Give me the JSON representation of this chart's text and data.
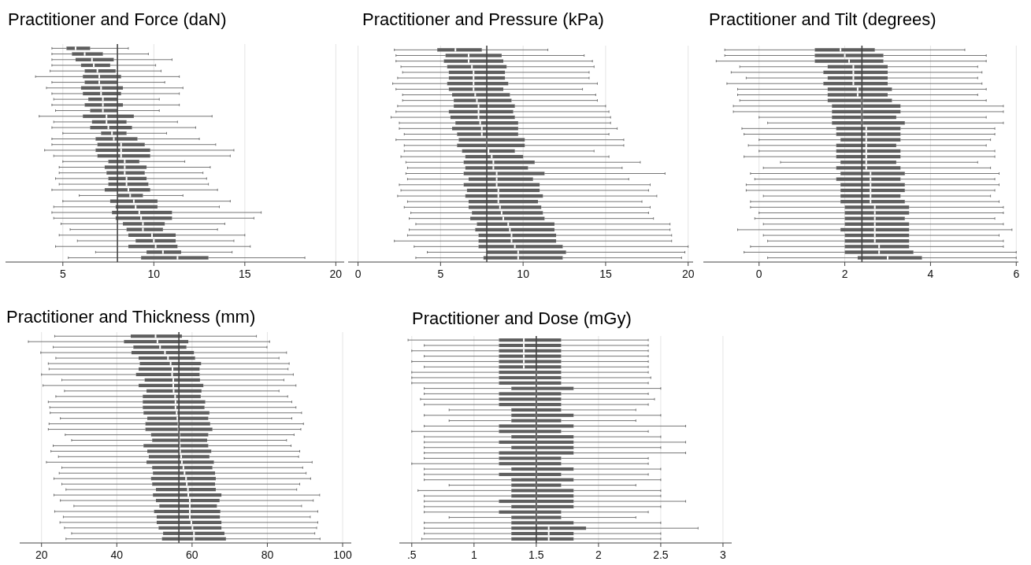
{
  "chart_data": [
    {
      "type": "box",
      "title": "Practitioner and Force (daN)",
      "orientation": "horizontal",
      "color": "#5e5e5e",
      "grid": "x",
      "tick_labels": "x",
      "xlim": [
        1.85,
        20.46
      ],
      "xticks": [
        5,
        10,
        15,
        20
      ],
      "ref_lines": [
        {
          "axis": "x",
          "value": 8,
          "color": "#444444"
        }
      ],
      "categories": [
        null,
        null,
        null,
        null,
        null,
        null,
        null,
        null,
        null,
        null,
        null,
        null,
        null,
        null,
        null,
        null,
        null,
        null,
        null,
        null,
        null,
        null,
        null,
        null,
        null,
        null,
        null,
        null,
        null,
        null,
        null,
        null,
        null,
        null,
        null,
        null,
        null,
        null
      ],
      "boxes": [
        {
          "low": 4.4,
          "q1": 5.2,
          "median": 5.7,
          "q3": 6.5,
          "high": 8.6
        },
        {
          "low": 4.4,
          "q1": 5.5,
          "median": 6.2,
          "q3": 7.2,
          "high": 9.7
        },
        {
          "low": 4.4,
          "q1": 5.7,
          "median": 6.6,
          "q3": 7.8,
          "high": 11.0
        },
        {
          "low": 4.4,
          "q1": 6.0,
          "median": 6.7,
          "q3": 7.6,
          "high": 10.1
        },
        {
          "low": 4.3,
          "q1": 6.2,
          "median": 6.9,
          "q3": 7.9,
          "high": 10.4
        },
        {
          "low": 3.5,
          "q1": 6.1,
          "median": 7.0,
          "q3": 8.2,
          "high": 11.4
        },
        {
          "low": 4.4,
          "q1": 6.2,
          "median": 7.0,
          "q3": 8.0,
          "high": 10.6
        },
        {
          "low": 4.1,
          "q1": 6.0,
          "median": 7.1,
          "q3": 8.3,
          "high": 11.6
        },
        {
          "low": 4.4,
          "q1": 6.1,
          "median": 7.1,
          "q3": 8.2,
          "high": 11.4
        },
        {
          "low": 4.5,
          "q1": 6.4,
          "median": 7.2,
          "q3": 8.0,
          "high": 10.3
        },
        {
          "low": 4.4,
          "q1": 6.2,
          "median": 7.2,
          "q3": 8.3,
          "high": 11.4
        },
        {
          "low": 4.6,
          "q1": 6.5,
          "median": 7.2,
          "q3": 8.0,
          "high": 10.3
        },
        {
          "low": 3.7,
          "q1": 6.1,
          "median": 7.4,
          "q3": 8.9,
          "high": 13.2
        },
        {
          "low": 4.5,
          "q1": 6.6,
          "median": 7.4,
          "q3": 8.5,
          "high": 11.3
        },
        {
          "low": 4.4,
          "q1": 6.5,
          "median": 7.5,
          "q3": 8.8,
          "high": 12.3
        },
        {
          "low": 5.0,
          "q1": 7.1,
          "median": 7.7,
          "q3": 8.5,
          "high": 10.7
        },
        {
          "low": 4.4,
          "q1": 6.8,
          "median": 7.8,
          "q3": 9.1,
          "high": 12.5
        },
        {
          "low": 4.4,
          "q1": 6.9,
          "median": 8.2,
          "q3": 9.5,
          "high": 13.4
        },
        {
          "low": 4.0,
          "q1": 6.8,
          "median": 8.2,
          "q3": 9.8,
          "high": 14.4
        },
        {
          "low": 4.5,
          "q1": 6.9,
          "median": 8.2,
          "q3": 9.8,
          "high": 14.2
        },
        {
          "low": 5.0,
          "q1": 7.5,
          "median": 8.4,
          "q3": 9.2,
          "high": 11.7
        },
        {
          "low": 4.8,
          "q1": 7.3,
          "median": 8.4,
          "q3": 9.6,
          "high": 13.1
        },
        {
          "low": 4.8,
          "q1": 7.4,
          "median": 8.4,
          "q3": 9.5,
          "high": 12.7
        },
        {
          "low": 4.6,
          "q1": 7.5,
          "median": 8.5,
          "q3": 9.6,
          "high": 12.9
        },
        {
          "low": 4.8,
          "q1": 7.5,
          "median": 8.5,
          "q3": 9.7,
          "high": 13.0
        },
        {
          "low": 4.4,
          "q1": 7.3,
          "median": 8.6,
          "q3": 9.8,
          "high": 13.5
        },
        {
          "low": 5.9,
          "q1": 8.0,
          "median": 8.7,
          "q3": 9.4,
          "high": 11.6
        },
        {
          "low": 5.0,
          "q1": 7.6,
          "median": 8.9,
          "q3": 10.2,
          "high": 14.2
        },
        {
          "low": 4.5,
          "q1": 7.9,
          "median": 9.0,
          "q3": 10.2,
          "high": 13.6
        },
        {
          "low": 4.4,
          "q1": 7.7,
          "median": 9.2,
          "q3": 11.0,
          "high": 15.9
        },
        {
          "low": 4.5,
          "q1": 7.9,
          "median": 9.3,
          "q3": 11.0,
          "high": 15.5
        },
        {
          "low": 4.9,
          "q1": 8.3,
          "median": 9.4,
          "q3": 10.6,
          "high": 13.9
        },
        {
          "low": 5.4,
          "q1": 8.5,
          "median": 9.4,
          "q3": 10.5,
          "high": 13.5
        },
        {
          "low": 4.8,
          "q1": 8.6,
          "median": 9.9,
          "q3": 11.2,
          "high": 15.0
        },
        {
          "low": 5.8,
          "q1": 9.0,
          "median": 10.0,
          "q3": 11.2,
          "high": 14.4
        },
        {
          "low": 4.6,
          "q1": 8.6,
          "median": 10.1,
          "q3": 11.3,
          "high": 15.3
        },
        {
          "low": 6.8,
          "q1": 9.6,
          "median": 10.5,
          "q3": 11.5,
          "high": 14.3
        },
        {
          "low": 5.3,
          "q1": 9.3,
          "median": 11.3,
          "q3": 13.0,
          "high": 18.3
        }
      ]
    },
    {
      "type": "box",
      "title": "Practitioner and Pressure (kPa)",
      "orientation": "horizontal",
      "color": "#5e5e5e",
      "grid": "x",
      "tick_labels": "x",
      "xlim": [
        -0.6,
        20.3
      ],
      "xticks": [
        0,
        5,
        10,
        15,
        20
      ],
      "ref_lines": [
        {
          "axis": "x",
          "value": 7.8,
          "color": "#444444"
        }
      ],
      "categories": [
        null,
        null,
        null,
        null,
        null,
        null,
        null,
        null,
        null,
        null,
        null,
        null,
        null,
        null,
        null,
        null,
        null,
        null,
        null,
        null,
        null,
        null,
        null,
        null,
        null,
        null,
        null,
        null,
        null,
        null,
        null,
        null,
        null,
        null,
        null,
        null,
        null,
        null
      ],
      "boxes": [
        {
          "low": 2.2,
          "q1": 4.8,
          "median": 5.9,
          "q3": 7.5,
          "high": 11.5
        },
        {
          "low": 2.3,
          "q1": 5.3,
          "median": 6.7,
          "q3": 8.7,
          "high": 13.7
        },
        {
          "low": 2.3,
          "q1": 5.2,
          "median": 6.7,
          "q3": 8.8,
          "high": 14.2
        },
        {
          "low": 2.6,
          "q1": 5.4,
          "median": 6.9,
          "q3": 9.0,
          "high": 14.3
        },
        {
          "low": 2.7,
          "q1": 5.5,
          "median": 7.0,
          "q3": 8.9,
          "high": 14.0
        },
        {
          "low": 2.4,
          "q1": 5.5,
          "median": 7.0,
          "q3": 8.9,
          "high": 14.0
        },
        {
          "low": 2.1,
          "q1": 5.4,
          "median": 7.0,
          "q3": 9.1,
          "high": 14.5
        },
        {
          "low": 2.3,
          "q1": 5.5,
          "median": 7.0,
          "q3": 8.8,
          "high": 13.6
        },
        {
          "low": 2.7,
          "q1": 5.7,
          "median": 7.1,
          "q3": 9.2,
          "high": 14.4
        },
        {
          "low": 2.7,
          "q1": 5.8,
          "median": 7.2,
          "q3": 9.3,
          "high": 14.5
        },
        {
          "low": 2.4,
          "q1": 5.8,
          "median": 7.3,
          "q3": 9.5,
          "high": 15.0
        },
        {
          "low": 2.3,
          "q1": 5.5,
          "median": 7.3,
          "q3": 9.4,
          "high": 15.2
        },
        {
          "low": 2.0,
          "q1": 5.6,
          "median": 7.3,
          "q3": 9.5,
          "high": 15.3
        },
        {
          "low": 2.5,
          "q1": 5.9,
          "median": 7.4,
          "q3": 9.7,
          "high": 15.3
        },
        {
          "low": 2.5,
          "q1": 5.7,
          "median": 7.5,
          "q3": 9.7,
          "high": 15.7
        },
        {
          "low": 2.8,
          "q1": 6.0,
          "median": 7.5,
          "q3": 9.7,
          "high": 15.2
        },
        {
          "low": 2.3,
          "q1": 6.1,
          "median": 7.8,
          "q3": 10.1,
          "high": 16.1
        },
        {
          "low": 2.8,
          "q1": 6.0,
          "median": 7.8,
          "q3": 10.1,
          "high": 16.1
        },
        {
          "low": 2.8,
          "q1": 6.3,
          "median": 7.9,
          "q3": 9.5,
          "high": 14.3
        },
        {
          "low": 2.6,
          "q1": 6.5,
          "median": 8.1,
          "q3": 10.0,
          "high": 15.2
        },
        {
          "low": 2.9,
          "q1": 6.4,
          "median": 8.2,
          "q3": 10.7,
          "high": 17.1
        },
        {
          "low": 3.0,
          "q1": 6.5,
          "median": 8.2,
          "q3": 10.3,
          "high": 16.0
        },
        {
          "low": 2.9,
          "q1": 6.4,
          "median": 8.4,
          "q3": 11.3,
          "high": 18.6
        },
        {
          "low": 3.0,
          "q1": 6.7,
          "median": 8.4,
          "q3": 10.6,
          "high": 16.4
        },
        {
          "low": 2.5,
          "q1": 6.4,
          "median": 8.4,
          "q3": 11.0,
          "high": 17.7
        },
        {
          "low": 2.6,
          "q1": 6.6,
          "median": 8.5,
          "q3": 11.0,
          "high": 17.6
        },
        {
          "low": 2.4,
          "q1": 6.5,
          "median": 8.5,
          "q3": 11.2,
          "high": 18.1
        },
        {
          "low": 3.0,
          "q1": 6.7,
          "median": 8.5,
          "q3": 10.9,
          "high": 17.2
        },
        {
          "low": 2.8,
          "q1": 6.7,
          "median": 8.6,
          "q3": 11.1,
          "high": 17.7
        },
        {
          "low": 3.2,
          "q1": 6.9,
          "median": 8.7,
          "q3": 11.2,
          "high": 17.6
        },
        {
          "low": 3.1,
          "q1": 6.8,
          "median": 8.8,
          "q3": 11.3,
          "high": 17.9
        },
        {
          "low": 3.5,
          "q1": 7.2,
          "median": 9.1,
          "q3": 11.9,
          "high": 18.9
        },
        {
          "low": 3.1,
          "q1": 7.1,
          "median": 9.2,
          "q3": 11.9,
          "high": 18.9
        },
        {
          "low": 3.0,
          "q1": 7.3,
          "median": 9.3,
          "q3": 12.0,
          "high": 19.0
        },
        {
          "low": 2.2,
          "q1": 7.3,
          "median": 9.3,
          "q3": 12.0,
          "high": 19.0
        },
        {
          "low": 3.4,
          "q1": 7.3,
          "median": 9.5,
          "q3": 12.4,
          "high": 20.0
        },
        {
          "low": 4.2,
          "q1": 7.8,
          "median": 9.7,
          "q3": 12.6,
          "high": 19.8
        },
        {
          "low": 3.5,
          "q1": 7.6,
          "median": 9.7,
          "q3": 12.4,
          "high": 19.6
        }
      ]
    },
    {
      "type": "box",
      "title": "Practitioner and Tilt (degrees)",
      "orientation": "horizontal",
      "color": "#5e5e5e",
      "grid": "x",
      "tick_labels": "x",
      "xlim": [
        -1.3,
        6.05
      ],
      "xticks": [
        0,
        2,
        4,
        6
      ],
      "ref_lines": [
        {
          "axis": "x",
          "value": 2.4,
          "color": "#444444"
        }
      ],
      "categories": [
        null,
        null,
        null,
        null,
        null,
        null,
        null,
        null,
        null,
        null,
        null,
        null,
        null,
        null,
        null,
        null,
        null,
        null,
        null,
        null,
        null,
        null,
        null,
        null,
        null,
        null,
        null,
        null,
        null,
        null,
        null,
        null,
        null,
        null,
        null,
        null,
        null,
        null
      ],
      "boxes": [
        {
          "low": -0.8,
          "q1": 1.3,
          "median": 1.9,
          "q3": 2.7,
          "high": 4.8
        },
        {
          "low": -0.8,
          "q1": 1.3,
          "median": 2.0,
          "q3": 2.9,
          "high": 5.3
        },
        {
          "low": -1.0,
          "q1": 1.3,
          "median": 2.1,
          "q3": 2.9,
          "high": 5.3
        },
        {
          "low": -0.45,
          "q1": 1.6,
          "median": 2.2,
          "q3": 3.0,
          "high": 5.1
        },
        {
          "low": -0.65,
          "q1": 1.5,
          "median": 2.2,
          "q3": 3.0,
          "high": 5.2
        },
        {
          "low": -0.3,
          "q1": 1.6,
          "median": 2.2,
          "q3": 3.0,
          "high": 5.1
        },
        {
          "low": -0.75,
          "q1": 1.5,
          "median": 2.2,
          "q3": 3.0,
          "high": 5.2
        },
        {
          "low": -0.5,
          "q1": 1.6,
          "median": 2.3,
          "q3": 3.1,
          "high": 5.3
        },
        {
          "low": -0.5,
          "q1": 1.6,
          "median": 2.3,
          "q3": 3.0,
          "high": 5.1
        },
        {
          "low": -0.45,
          "q1": 1.6,
          "median": 2.4,
          "q3": 3.1,
          "high": 5.3
        },
        {
          "low": -0.6,
          "q1": 1.7,
          "median": 2.4,
          "q3": 3.3,
          "high": 5.7
        },
        {
          "low": -0.6,
          "q1": 1.7,
          "median": 2.4,
          "q3": 3.3,
          "high": 5.7
        },
        {
          "low": 0.0,
          "q1": 1.7,
          "median": 2.4,
          "q3": 3.2,
          "high": 5.3
        },
        {
          "low": 0.2,
          "q1": 1.7,
          "median": 2.4,
          "q3": 3.4,
          "high": 5.7
        },
        {
          "low": -0.4,
          "q1": 1.8,
          "median": 2.5,
          "q3": 3.3,
          "high": 5.5
        },
        {
          "low": -0.35,
          "q1": 1.8,
          "median": 2.5,
          "q3": 3.3,
          "high": 5.5
        },
        {
          "low": 0.0,
          "q1": 1.9,
          "median": 2.5,
          "q3": 3.3,
          "high": 5.4
        },
        {
          "low": -0.25,
          "q1": 1.8,
          "median": 2.5,
          "q3": 3.2,
          "high": 5.3
        },
        {
          "low": 0.0,
          "q1": 1.8,
          "median": 2.5,
          "q3": 3.3,
          "high": 5.5
        },
        {
          "low": -0.35,
          "q1": 1.8,
          "median": 2.5,
          "q3": 3.3,
          "high": 5.5
        },
        {
          "low": 0.5,
          "q1": 1.9,
          "median": 2.5,
          "q3": 3.2,
          "high": 5.1
        },
        {
          "low": 0.1,
          "q1": 1.8,
          "median": 2.5,
          "q3": 3.3,
          "high": 5.4
        },
        {
          "low": -0.2,
          "q1": 1.9,
          "median": 2.6,
          "q3": 3.4,
          "high": 5.6
        },
        {
          "low": -0.1,
          "q1": 1.8,
          "median": 2.6,
          "q3": 3.3,
          "high": 5.5
        },
        {
          "low": -0.3,
          "q1": 1.9,
          "median": 2.6,
          "q3": 3.4,
          "high": 5.6
        },
        {
          "low": -0.3,
          "q1": 1.9,
          "median": 2.6,
          "q3": 3.4,
          "high": 5.5
        },
        {
          "low": 0.1,
          "q1": 1.9,
          "median": 2.6,
          "q3": 3.3,
          "high": 5.4
        },
        {
          "low": -0.2,
          "q1": 1.9,
          "median": 2.6,
          "q3": 3.4,
          "high": 5.6
        },
        {
          "low": -0.2,
          "q1": 2.0,
          "median": 2.7,
          "q3": 3.5,
          "high": 5.7
        },
        {
          "low": 0.0,
          "q1": 2.0,
          "median": 2.7,
          "q3": 3.5,
          "high": 5.7
        },
        {
          "low": -0.1,
          "q1": 2.0,
          "median": 2.7,
          "q3": 3.4,
          "high": 5.5
        },
        {
          "low": 0.1,
          "q1": 2.0,
          "median": 2.7,
          "q3": 3.5,
          "high": 5.7
        },
        {
          "low": -0.5,
          "q1": 1.9,
          "median": 2.7,
          "q3": 3.5,
          "high": 5.9
        },
        {
          "low": 0.1,
          "q1": 2.0,
          "median": 2.7,
          "q3": 3.5,
          "high": 5.6
        },
        {
          "low": 0.2,
          "q1": 2.0,
          "median": 2.7,
          "q3": 3.5,
          "high": 5.7
        },
        {
          "low": -0.2,
          "q1": 2.0,
          "median": 2.8,
          "q3": 3.5,
          "high": 5.7
        },
        {
          "low": -0.35,
          "q1": 2.0,
          "median": 2.8,
          "q3": 3.6,
          "high": 6.0
        },
        {
          "low": 0.2,
          "q1": 2.3,
          "median": 3.0,
          "q3": 3.8,
          "high": 6.0
        }
      ]
    },
    {
      "type": "box",
      "title": "Practitioner and Thickness (mm)",
      "orientation": "horizontal",
      "color": "#5e5e5e",
      "grid": "x",
      "tick_labels": "x",
      "xlim": [
        14.2,
        102.3
      ],
      "xticks": [
        20,
        40,
        60,
        80,
        100
      ],
      "ref_lines": [
        {
          "axis": "x",
          "value": 56.5,
          "color": "#444444"
        }
      ],
      "categories": [
        null,
        null,
        null,
        null,
        null,
        null,
        null,
        null,
        null,
        null,
        null,
        null,
        null,
        null,
        null,
        null,
        null,
        null,
        null,
        null,
        null,
        null,
        null,
        null,
        null,
        null,
        null,
        null,
        null,
        null,
        null,
        null,
        null,
        null,
        null,
        null,
        null,
        null
      ],
      "boxes": [
        {
          "low": 23.5,
          "q1": 43.7,
          "median": 50.3,
          "q3": 57.3,
          "high": 77.1
        },
        {
          "low": 16.5,
          "q1": 41.9,
          "median": 50.8,
          "q3": 59.0,
          "high": 80.6
        },
        {
          "low": 23.1,
          "q1": 44.4,
          "median": 51.5,
          "q3": 58.5,
          "high": 79.9
        },
        {
          "low": 19.8,
          "q1": 43.9,
          "median": 52.8,
          "q3": 60.5,
          "high": 85.1
        },
        {
          "low": 23.8,
          "q1": 45.8,
          "median": 53.6,
          "q3": 60.8,
          "high": 83.1
        },
        {
          "low": 21.8,
          "q1": 46.1,
          "median": 54.3,
          "q3": 62.4,
          "high": 85.8
        },
        {
          "low": 22.0,
          "q1": 45.8,
          "median": 54.8,
          "q3": 62.0,
          "high": 85.5
        },
        {
          "low": 20.0,
          "q1": 45.1,
          "median": 54.7,
          "q3": 62.0,
          "high": 86.9
        },
        {
          "low": 25.4,
          "q1": 47.4,
          "median": 55.0,
          "q3": 62.1,
          "high": 84.4
        },
        {
          "low": 20.4,
          "q1": 45.8,
          "median": 55.0,
          "q3": 63.0,
          "high": 87.6
        },
        {
          "low": 26.1,
          "q1": 47.9,
          "median": 55.1,
          "q3": 62.5,
          "high": 83.1
        },
        {
          "low": 23.8,
          "q1": 46.9,
          "median": 55.5,
          "q3": 62.3,
          "high": 85.4
        },
        {
          "low": 21.8,
          "q1": 46.9,
          "median": 55.6,
          "q3": 63.5,
          "high": 86.5
        },
        {
          "low": 22.2,
          "q1": 46.9,
          "median": 55.6,
          "q3": 63.3,
          "high": 87.6
        },
        {
          "low": 22.3,
          "q1": 47.1,
          "median": 55.9,
          "q3": 64.6,
          "high": 89.1
        },
        {
          "low": 25.0,
          "q1": 48.1,
          "median": 56.1,
          "q3": 64.3,
          "high": 86.5
        },
        {
          "low": 22.0,
          "q1": 47.6,
          "median": 56.4,
          "q3": 64.8,
          "high": 89.6
        },
        {
          "low": 21.8,
          "q1": 47.6,
          "median": 56.4,
          "q3": 65.4,
          "high": 88.9
        },
        {
          "low": 26.3,
          "q1": 49.1,
          "median": 56.6,
          "q3": 64.3,
          "high": 87.1
        },
        {
          "low": 28.0,
          "q1": 49.4,
          "median": 56.6,
          "q3": 64.0,
          "high": 85.1
        },
        {
          "low": 23.1,
          "q1": 47.1,
          "median": 56.7,
          "q3": 64.3,
          "high": 86.3
        },
        {
          "low": 22.5,
          "q1": 48.1,
          "median": 56.8,
          "q3": 65.1,
          "high": 88.6
        },
        {
          "low": 24.5,
          "q1": 48.5,
          "median": 57.1,
          "q3": 64.6,
          "high": 88.3
        },
        {
          "low": 21.3,
          "q1": 47.9,
          "median": 57.3,
          "q3": 65.8,
          "high": 91.9
        },
        {
          "low": 25.4,
          "q1": 49.4,
          "median": 57.7,
          "q3": 65.4,
          "high": 89.4
        },
        {
          "low": 24.7,
          "q1": 49.6,
          "median": 58.0,
          "q3": 66.1,
          "high": 90.3
        },
        {
          "low": 23.3,
          "q1": 49.1,
          "median": 58.4,
          "q3": 66.3,
          "high": 91.5
        },
        {
          "low": 25.4,
          "q1": 49.4,
          "median": 58.6,
          "q3": 66.1,
          "high": 88.6
        },
        {
          "low": 26.5,
          "q1": 50.4,
          "median": 58.9,
          "q3": 66.3,
          "high": 87.8
        },
        {
          "low": 23.3,
          "q1": 49.6,
          "median": 59.0,
          "q3": 67.8,
          "high": 93.9
        },
        {
          "low": 25.0,
          "q1": 50.4,
          "median": 59.4,
          "q3": 67.3,
          "high": 92.2
        },
        {
          "low": 28.6,
          "q1": 51.3,
          "median": 59.4,
          "q3": 66.6,
          "high": 89.1
        },
        {
          "low": 23.5,
          "q1": 49.9,
          "median": 59.4,
          "q3": 67.5,
          "high": 93.4
        },
        {
          "low": 25.8,
          "q1": 50.6,
          "median": 59.4,
          "q3": 67.4,
          "high": 91.4
        },
        {
          "low": 24.9,
          "q1": 50.6,
          "median": 59.8,
          "q3": 67.8,
          "high": 93.4
        },
        {
          "low": 26.1,
          "q1": 51.1,
          "median": 60.1,
          "q3": 67.8,
          "high": 93.1
        },
        {
          "low": 28.0,
          "q1": 52.3,
          "median": 60.5,
          "q3": 68.6,
          "high": 92.6
        },
        {
          "low": 26.5,
          "q1": 52.0,
          "median": 60.5,
          "q3": 69.0,
          "high": 94.0
        }
      ]
    },
    {
      "type": "box",
      "title": "Practitioner and Dose (mGy)",
      "orientation": "horizontal",
      "color": "#5e5e5e",
      "grid": "x",
      "tick_labels": "x",
      "xlim": [
        0.4,
        3.07
      ],
      "xticks": [
        {
          "value": 0.5,
          "label": ".5"
        },
        1,
        1.5,
        2,
        2.5,
        3
      ],
      "ref_lines": [
        {
          "axis": "x",
          "value": 1.5,
          "color": "#444444"
        }
      ],
      "categories": [
        null,
        null,
        null,
        null,
        null,
        null,
        null,
        null,
        null,
        null,
        null,
        null,
        null,
        null,
        null,
        null,
        null,
        null,
        null,
        null,
        null,
        null,
        null,
        null,
        null,
        null,
        null,
        null,
        null,
        null,
        null,
        null,
        null,
        null,
        null,
        null,
        null,
        null
      ],
      "boxes": [
        {
          "low": 0.47,
          "q1": 1.2,
          "median": 1.4,
          "q3": 1.7,
          "high": 2.4
        },
        {
          "low": 0.6,
          "q1": 1.2,
          "median": 1.4,
          "q3": 1.7,
          "high": 2.4
        },
        {
          "low": 0.5,
          "q1": 1.2,
          "median": 1.4,
          "q3": 1.7,
          "high": 2.4
        },
        {
          "low": 0.6,
          "q1": 1.2,
          "median": 1.4,
          "q3": 1.7,
          "high": 2.4
        },
        {
          "low": 0.5,
          "q1": 1.2,
          "median": 1.4,
          "q3": 1.7,
          "high": 2.4
        },
        {
          "low": 0.6,
          "q1": 1.2,
          "median": 1.4,
          "q3": 1.7,
          "high": 2.4
        },
        {
          "low": 0.5,
          "q1": 1.2,
          "median": 1.5,
          "q3": 1.7,
          "high": 2.4
        },
        {
          "low": 0.5,
          "q1": 1.2,
          "median": 1.5,
          "q3": 1.7,
          "high": 2.42
        },
        {
          "low": 0.5,
          "q1": 1.2,
          "median": 1.5,
          "q3": 1.7,
          "high": 2.4
        },
        {
          "low": 0.6,
          "q1": 1.3,
          "median": 1.5,
          "q3": 1.8,
          "high": 2.5
        },
        {
          "low": 0.6,
          "q1": 1.2,
          "median": 1.5,
          "q3": 1.7,
          "high": 2.4
        },
        {
          "low": 0.57,
          "q1": 1.2,
          "median": 1.5,
          "q3": 1.7,
          "high": 2.45
        },
        {
          "low": 0.6,
          "q1": 1.2,
          "median": 1.5,
          "q3": 1.7,
          "high": 2.4
        },
        {
          "low": 0.8,
          "q1": 1.3,
          "median": 1.5,
          "q3": 1.7,
          "high": 2.3
        },
        {
          "low": 0.6,
          "q1": 1.3,
          "median": 1.5,
          "q3": 1.8,
          "high": 2.5
        },
        {
          "low": 0.8,
          "q1": 1.3,
          "median": 1.5,
          "q3": 1.7,
          "high": 2.3
        },
        {
          "low": 0.6,
          "q1": 1.2,
          "median": 1.5,
          "q3": 1.8,
          "high": 2.7
        },
        {
          "low": 0.5,
          "q1": 1.2,
          "median": 1.5,
          "q3": 1.7,
          "high": 2.4
        },
        {
          "low": 0.6,
          "q1": 1.3,
          "median": 1.5,
          "q3": 1.8,
          "high": 2.5
        },
        {
          "low": 0.6,
          "q1": 1.2,
          "median": 1.5,
          "q3": 1.8,
          "high": 2.7
        },
        {
          "low": 0.6,
          "q1": 1.3,
          "median": 1.5,
          "q3": 1.8,
          "high": 2.5
        },
        {
          "low": 0.6,
          "q1": 1.2,
          "median": 1.5,
          "q3": 1.8,
          "high": 2.7
        },
        {
          "low": 0.6,
          "q1": 1.2,
          "median": 1.5,
          "q3": 1.7,
          "high": 2.4
        },
        {
          "low": 0.5,
          "q1": 1.2,
          "median": 1.5,
          "q3": 1.7,
          "high": 2.4
        },
        {
          "low": 0.6,
          "q1": 1.3,
          "median": 1.5,
          "q3": 1.8,
          "high": 2.5
        },
        {
          "low": 0.6,
          "q1": 1.2,
          "median": 1.5,
          "q3": 1.7,
          "high": 2.4
        },
        {
          "low": 0.6,
          "q1": 1.3,
          "median": 1.5,
          "q3": 1.8,
          "high": 2.5
        },
        {
          "low": 0.8,
          "q1": 1.3,
          "median": 1.5,
          "q3": 1.7,
          "high": 2.3
        },
        {
          "low": 0.55,
          "q1": 1.3,
          "median": 1.5,
          "q3": 1.8,
          "high": 2.5
        },
        {
          "low": 0.6,
          "q1": 1.3,
          "median": 1.5,
          "q3": 1.8,
          "high": 2.5
        },
        {
          "low": 0.6,
          "q1": 1.2,
          "median": 1.5,
          "q3": 1.8,
          "high": 2.7
        },
        {
          "low": 0.6,
          "q1": 1.3,
          "median": 1.5,
          "q3": 1.8,
          "high": 2.5
        },
        {
          "low": 0.6,
          "q1": 1.2,
          "median": 1.5,
          "q3": 1.7,
          "high": 2.4
        },
        {
          "low": 0.8,
          "q1": 1.3,
          "median": 1.5,
          "q3": 1.7,
          "high": 2.3
        },
        {
          "low": 0.6,
          "q1": 1.3,
          "median": 1.5,
          "q3": 1.8,
          "high": 2.5
        },
        {
          "low": 0.6,
          "q1": 1.3,
          "median": 1.6,
          "q3": 1.9,
          "high": 2.8
        },
        {
          "low": 0.6,
          "q1": 1.3,
          "median": 1.6,
          "q3": 1.8,
          "high": 2.5
        },
        {
          "low": 0.58,
          "q1": 1.3,
          "median": 1.6,
          "q3": 1.8,
          "high": 2.5
        }
      ]
    }
  ]
}
